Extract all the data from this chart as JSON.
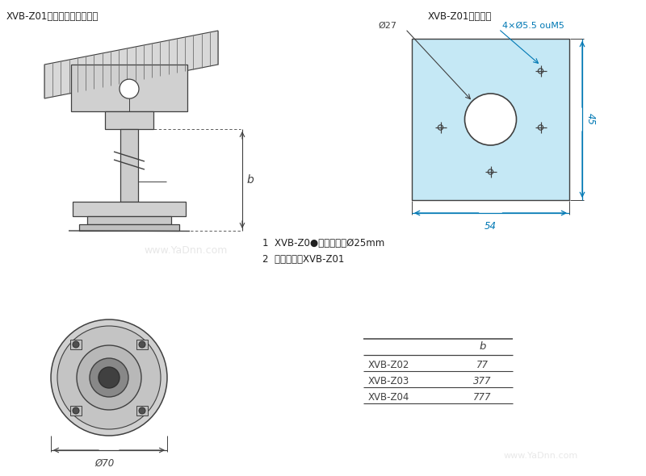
{
  "title_left": "XVB-Z01水平固定板安装图解",
  "title_right": "XVB-Z01开孔尺寸",
  "bg_color": "#ffffff",
  "light_blue": "#c5e8f5",
  "line_color": "#404040",
  "dim_color": "#0078b4",
  "text_color": "#202020",
  "annotation1": "1  XVB-Z0●支撑管直径Ø25mm",
  "annotation2": "2  水平固定板XVB-Z01",
  "dim_27": "Ø27",
  "dim_holes": "4×Ø5.5 ouM5",
  "dim_54": "54",
  "dim_45": "45",
  "dim_b": "b",
  "dim_70": "Ø70",
  "table_rows": [
    [
      "XVB-Z02",
      "77"
    ],
    [
      "XVB-Z03",
      "377"
    ],
    [
      "XVB-Z04",
      "777"
    ]
  ],
  "watermark": "www.YaDnn.com"
}
